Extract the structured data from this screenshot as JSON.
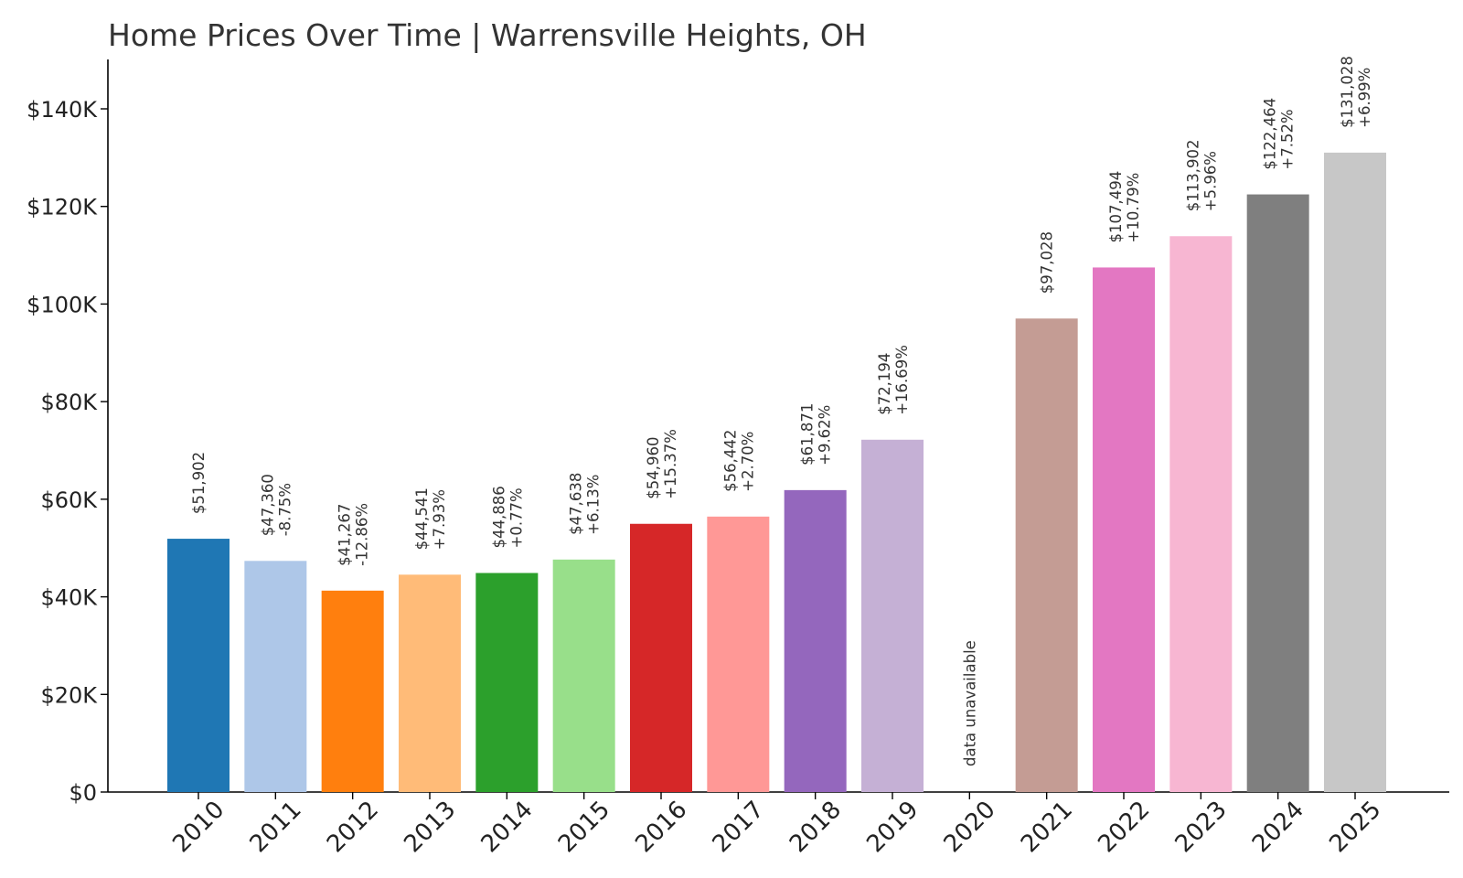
{
  "chart_data": {
    "type": "bar",
    "title": "Home Prices Over Time | Warrensville Heights, OH",
    "xlabel": "",
    "ylabel": "",
    "ylim": [
      0,
      150000
    ],
    "yticks": [
      0,
      20000,
      40000,
      60000,
      80000,
      100000,
      120000,
      140000
    ],
    "ytick_labels": [
      "$0",
      "$20K",
      "$40K",
      "$60K",
      "$80K",
      "$100K",
      "$120K",
      "$140K"
    ],
    "grid": false,
    "legend": "none",
    "categories": [
      "2010",
      "2011",
      "2012",
      "2013",
      "2014",
      "2015",
      "2016",
      "2017",
      "2018",
      "2019",
      "2020",
      "2021",
      "2022",
      "2023",
      "2024",
      "2025"
    ],
    "values": [
      51902,
      47360,
      41267,
      44541,
      44886,
      47638,
      54960,
      56442,
      61871,
      72194,
      null,
      97028,
      107494,
      113902,
      122464,
      131028
    ],
    "value_labels": [
      "$51,902",
      "$47,360",
      "$41,267",
      "$44,541",
      "$44,886",
      "$47,638",
      "$54,960",
      "$56,442",
      "$61,871",
      "$72,194",
      "",
      "$97,028",
      "$107,494",
      "$113,902",
      "$122,464",
      "$131,028"
    ],
    "change_labels": [
      "",
      "-8.75%",
      "-12.86%",
      "+7.93%",
      "+0.77%",
      "+6.13%",
      "+15.37%",
      "+2.70%",
      "+9.62%",
      "+16.69%",
      "",
      "",
      "+10.79%",
      "+5.96%",
      "+7.52%",
      "+6.99%"
    ],
    "missing_label": "data unavailable",
    "colors": [
      "#1f77b4",
      "#aec7e8",
      "#ff7f0e",
      "#ffbb78",
      "#2ca02c",
      "#98df8a",
      "#d62728",
      "#ff9896",
      "#9467bd",
      "#c5b0d5",
      "#8c564b",
      "#c49c94",
      "#e377c2",
      "#f7b6d2",
      "#7f7f7f",
      "#c7c7c7"
    ]
  }
}
